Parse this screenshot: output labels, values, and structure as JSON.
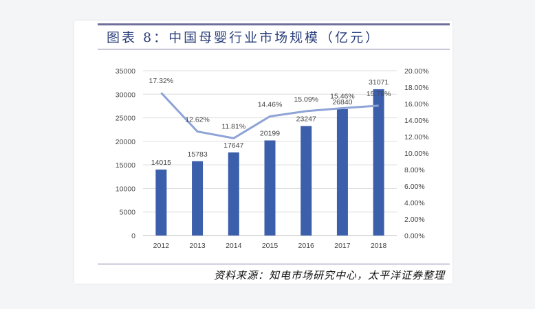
{
  "title": "图表 8：中国母婴行业市场规模（亿元）",
  "source": "资料来源：知电市场研究中心，太平洋证券整理",
  "colors": {
    "bar": "#3b5fab",
    "line": "#8ea3d6",
    "accent": "#6f6f9c"
  },
  "chart_data": {
    "type": "bar+line",
    "categories": [
      "2012",
      "2013",
      "2014",
      "2015",
      "2016",
      "2017",
      "2018"
    ],
    "series": [
      {
        "type": "bar",
        "axis": "left",
        "values": [
          14015,
          15783,
          17647,
          20199,
          23247,
          26840,
          31071
        ],
        "labels": [
          "14015",
          "15783",
          "17647",
          "20199",
          "23247",
          "26840",
          "31071"
        ]
      },
      {
        "type": "line",
        "axis": "right",
        "values": [
          17.32,
          12.62,
          11.81,
          14.46,
          15.09,
          15.46,
          15.76
        ],
        "labels": [
          "17.32%",
          "12.62%",
          "11.81%",
          "14.46%",
          "15.09%",
          "15.46%",
          "15.76%"
        ]
      }
    ],
    "left_axis": {
      "range": [
        0,
        35000
      ],
      "ticks": [
        "0",
        "5000",
        "10000",
        "15000",
        "20000",
        "25000",
        "30000",
        "35000"
      ]
    },
    "right_axis": {
      "range": [
        0,
        20
      ],
      "ticks": [
        "0.00%",
        "2.00%",
        "4.00%",
        "6.00%",
        "8.00%",
        "10.00%",
        "12.00%",
        "14.00%",
        "16.00%",
        "18.00%",
        "20.00%"
      ]
    },
    "grid": true,
    "legend": "none"
  }
}
